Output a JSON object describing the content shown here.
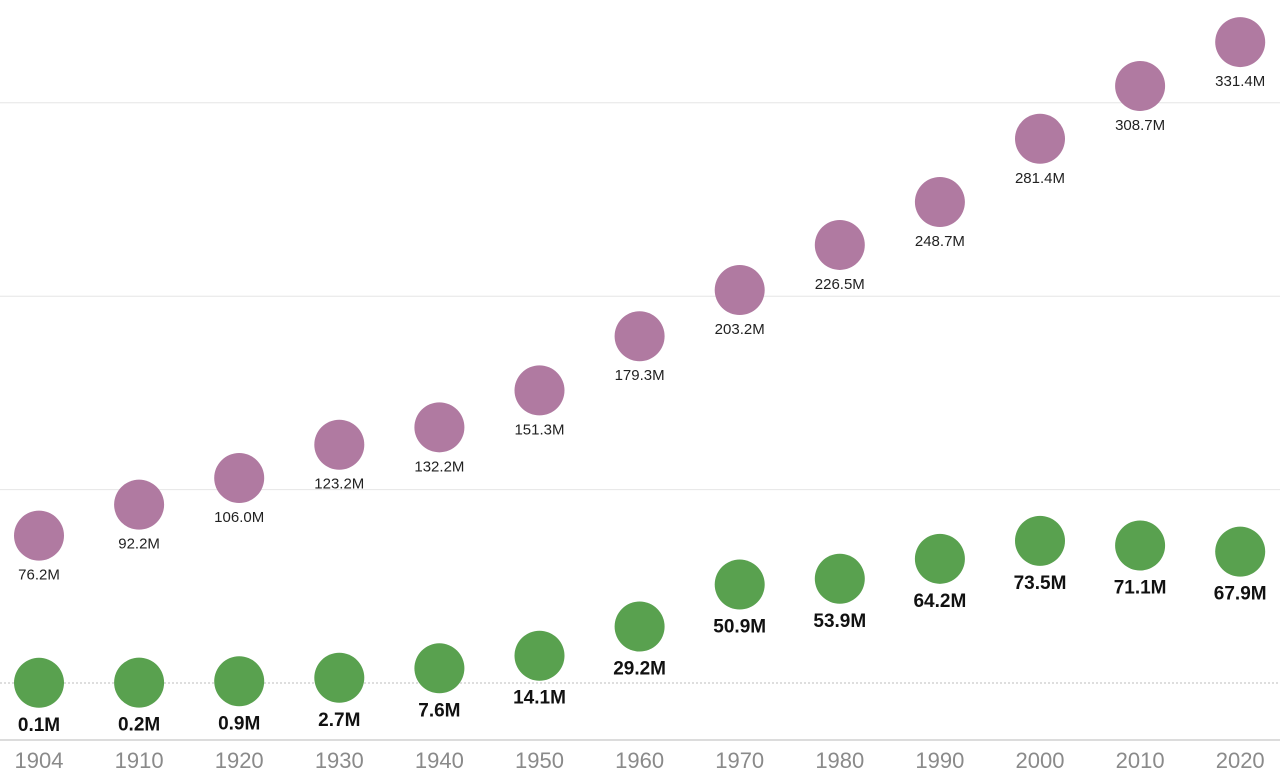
{
  "chart_data": {
    "type": "scatter",
    "x": [
      1904,
      1910,
      1920,
      1930,
      1940,
      1950,
      1960,
      1970,
      1980,
      1990,
      2000,
      2010,
      2020
    ],
    "x_tick_labels": [
      "1904",
      "1910",
      "1920",
      "1930",
      "1940",
      "1950",
      "1960",
      "1970",
      "1980",
      "1990",
      "2000",
      "2010",
      "2020"
    ],
    "series": [
      {
        "color": "#b07aa1",
        "values": [
          76.2,
          92.2,
          106.0,
          123.2,
          132.2,
          151.3,
          179.3,
          203.2,
          226.5,
          248.7,
          281.4,
          308.7,
          331.4
        ],
        "labels": [
          "76.2M",
          "92.2M",
          "106.0M",
          "123.2M",
          "132.2M",
          "151.3M",
          "179.3M",
          "203.2M",
          "226.5M",
          "248.7M",
          "281.4M",
          "308.7M",
          "331.4M"
        ]
      },
      {
        "color": "#59a14f",
        "values": [
          0.1,
          0.2,
          0.9,
          2.7,
          7.6,
          14.1,
          29.2,
          50.9,
          53.9,
          64.2,
          73.5,
          71.1,
          67.9
        ],
        "labels": [
          "0.1M",
          "0.2M",
          "0.9M",
          "2.7M",
          "7.6M",
          "14.1M",
          "29.2M",
          "50.9M",
          "53.9M",
          "64.2M",
          "73.5M",
          "71.1M",
          "67.9M"
        ]
      }
    ],
    "gridlines_y": [
      100,
      200,
      300
    ],
    "zero_line": "dotted",
    "title": "",
    "xlabel": "",
    "ylabel": "",
    "legend": "none"
  }
}
